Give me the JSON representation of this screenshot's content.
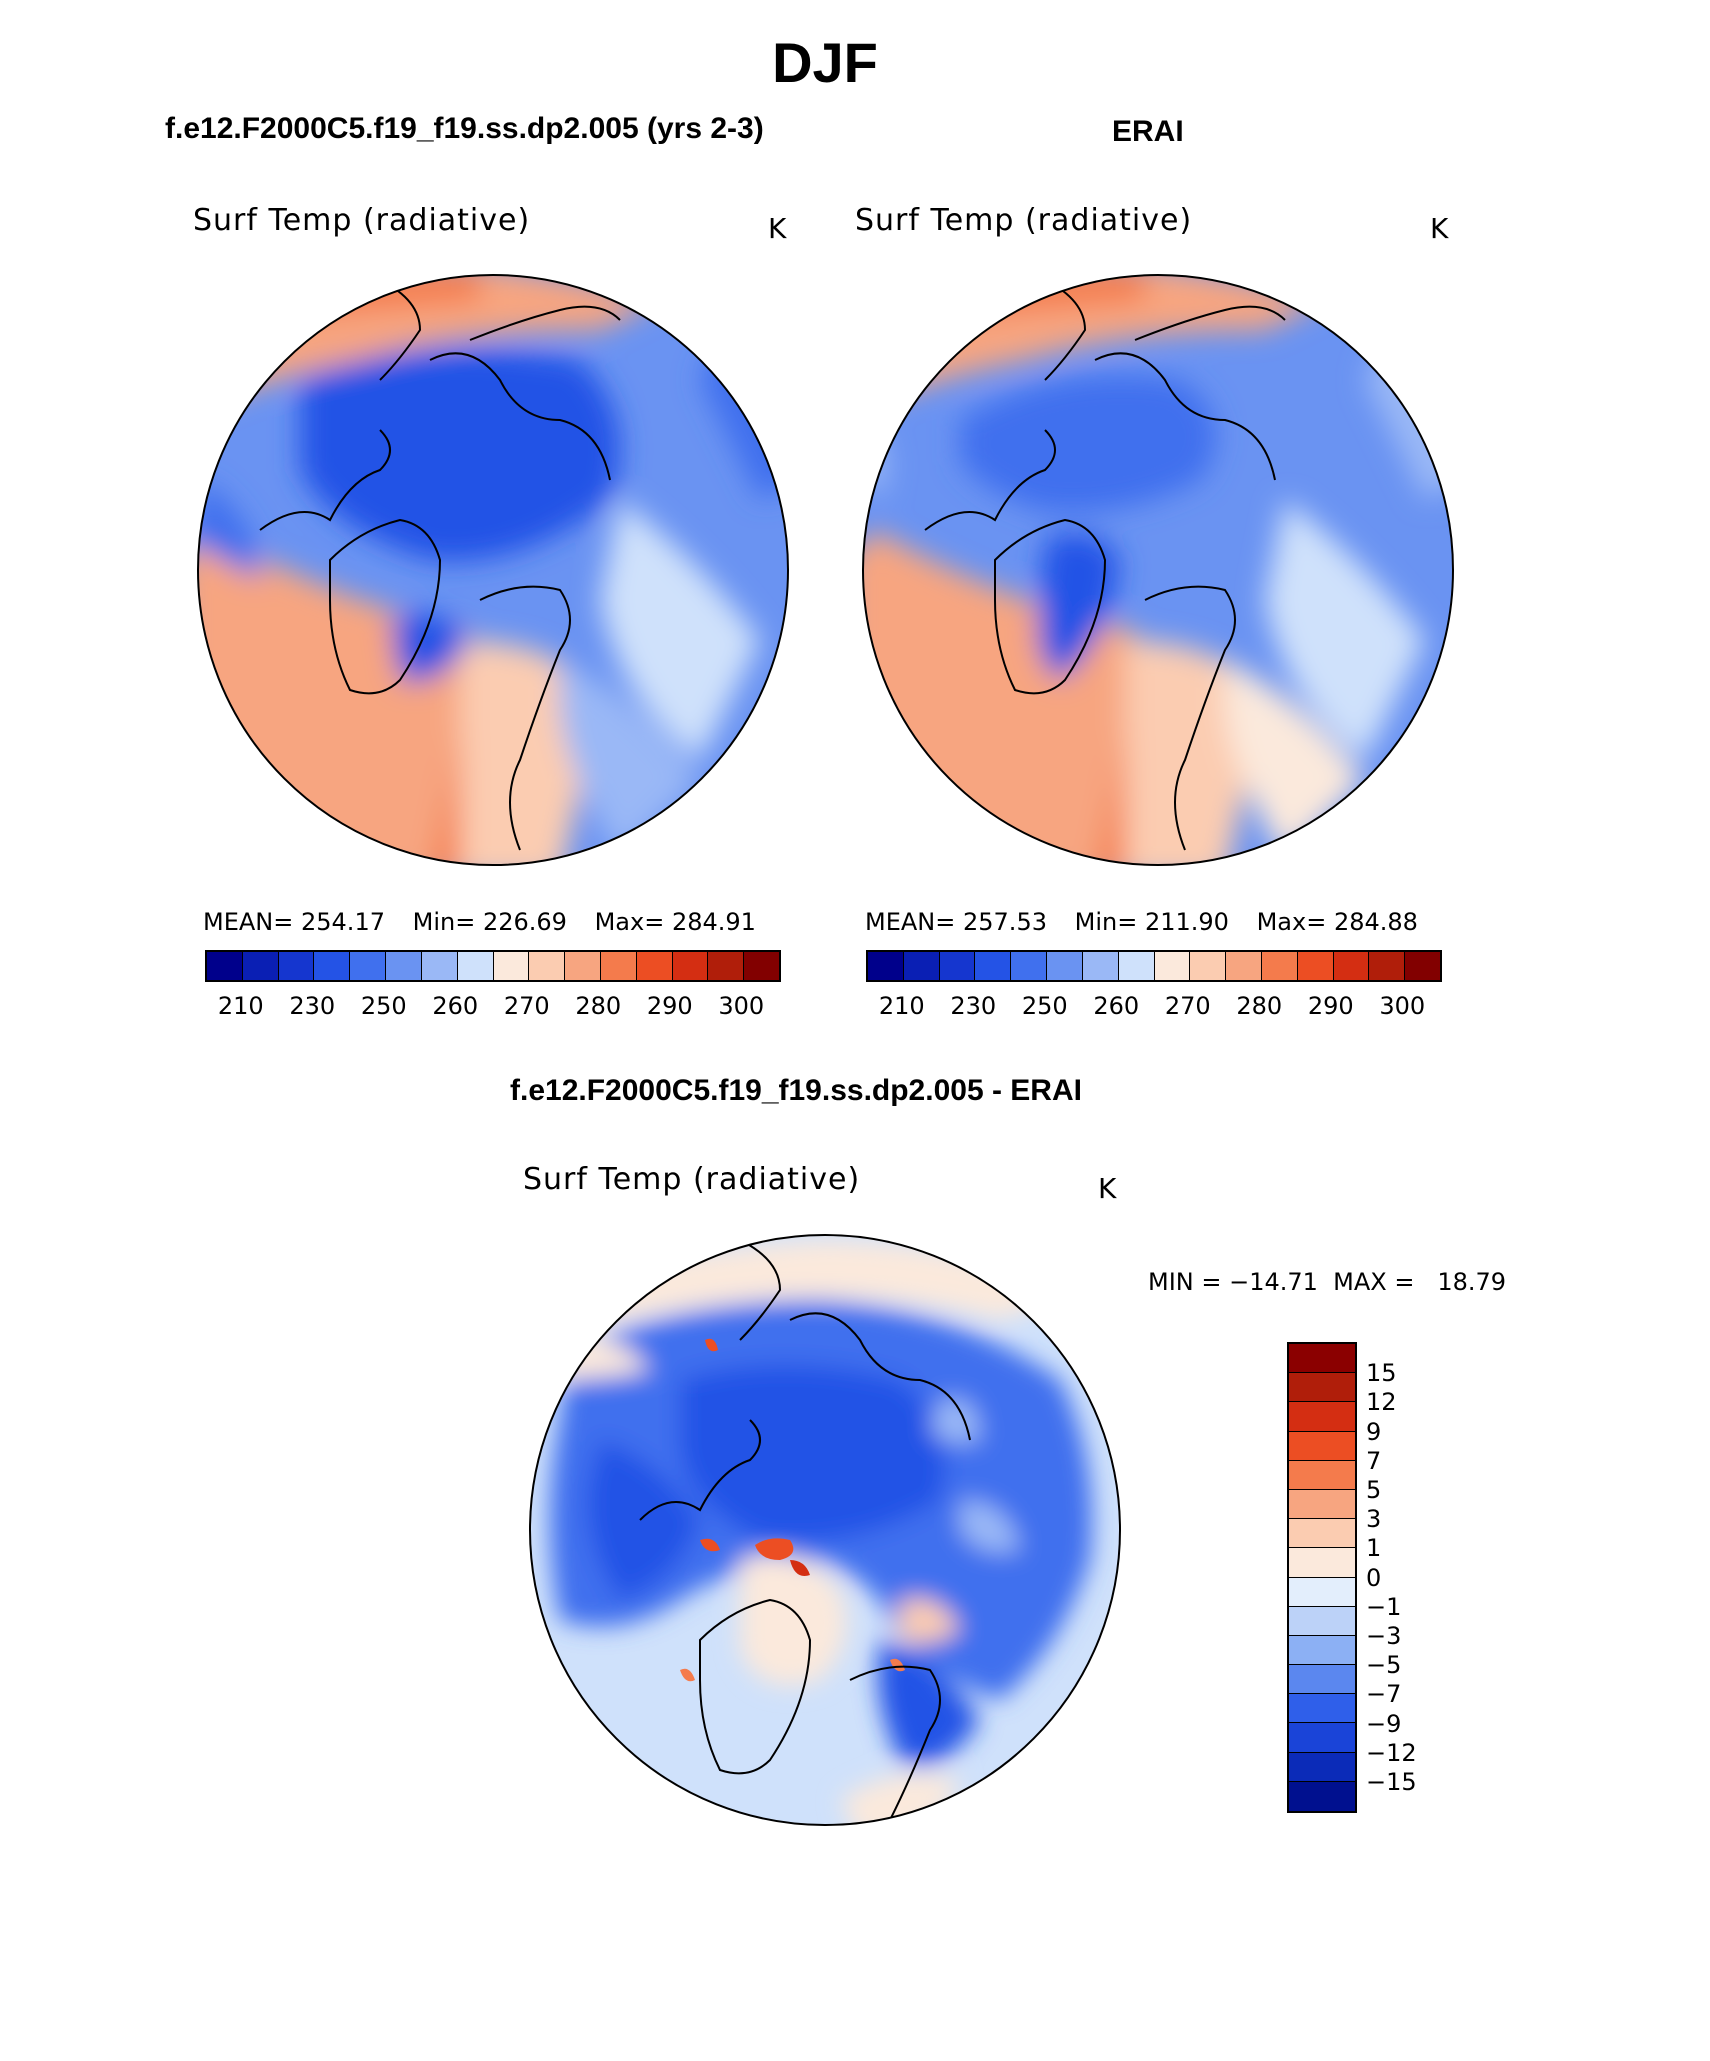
{
  "figure": {
    "season_title": "DJF",
    "model_title": "f.e12.F2000C5.f19_f19.ss.dp2.005 (yrs 2-3)",
    "obs_title": "ERAI",
    "diff_title": "f.e12.F2000C5.f19_f19.ss.dp2.005 - ERAI"
  },
  "panels": {
    "model": {
      "variable": "Surf Temp (radiative)",
      "units": "K",
      "mean_label": "MEAN=",
      "mean": "254.17",
      "min_label": "Min=",
      "min": "226.69",
      "max_label": "Max=",
      "max": "284.91"
    },
    "obs": {
      "variable": "Surf Temp (radiative)",
      "units": "K",
      "mean_label": "MEAN=",
      "mean": "257.53",
      "min_label": "Min=",
      "min": "211.90",
      "max_label": "Max=",
      "max": "284.88"
    },
    "diff": {
      "variable": "Surf Temp (radiative)",
      "units": "K",
      "minmax_text": "MIN = −14.71  MAX =   18.79"
    }
  },
  "abs_colorbar": {
    "ticks": [
      "210",
      "230",
      "250",
      "260",
      "270",
      "280",
      "290",
      "300"
    ],
    "colors": [
      "#00008b",
      "#0a1fb4",
      "#1536cf",
      "#2453e6",
      "#4070ee",
      "#6a93f2",
      "#9ab8f6",
      "#cfe1fb",
      "#fbe9dc",
      "#fbccb1",
      "#f7a580",
      "#f47b4c",
      "#ec4e23",
      "#d42e12",
      "#b01e0a",
      "#820000"
    ]
  },
  "diff_colorbar": {
    "ticks": [
      "15",
      "12",
      "9",
      "7",
      "5",
      "3",
      "1",
      "0",
      "−1",
      "−3",
      "−5",
      "−7",
      "−9",
      "−12",
      "−15"
    ],
    "colors": [
      "#8b0000",
      "#b01e0a",
      "#d42e12",
      "#ec4e23",
      "#f47b4c",
      "#f7a580",
      "#fbccb1",
      "#fbe9dc",
      "#e3eefc",
      "#bcd2f8",
      "#8cb0f4",
      "#5b87ef",
      "#2f5fea",
      "#1a44d8",
      "#0b2bb8",
      "#00108f"
    ]
  },
  "map_colors": {
    "deep_blue": "#2453e6",
    "mid_blue": "#4070ee",
    "light_blue": "#9ab8f6",
    "pale_blue": "#cfe1fb",
    "peach": "#fbccb1",
    "orange": "#f47b4c",
    "salmon": "#f7a580"
  }
}
